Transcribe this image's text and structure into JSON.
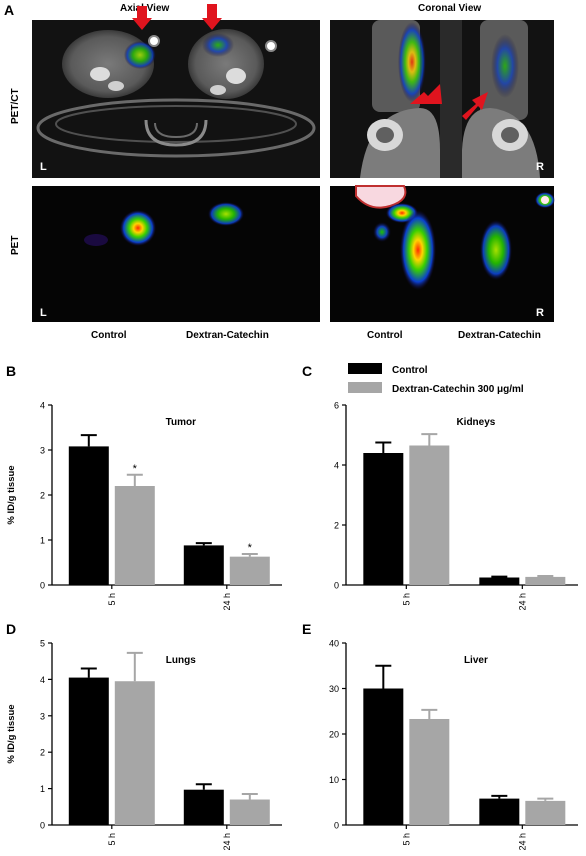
{
  "panel_labels": [
    "A",
    "B",
    "C",
    "D",
    "E"
  ],
  "imaging": {
    "axial_title": "Axial View",
    "coronal_title": "Coronal View",
    "row_labels": [
      "PET/CT",
      "PET"
    ],
    "left_marker": "L",
    "right_marker": "R",
    "group_labels": [
      "Control",
      "Dextran-Catechin",
      "Control",
      "Dextran-Catechin"
    ],
    "colors": {
      "arrow": "#e0141e",
      "ct_background": "#111111",
      "pet_background": "#050505"
    }
  },
  "legend": {
    "items": [
      {
        "label": "Control",
        "color": "#000000"
      },
      {
        "label": "Dextran-Catechin 300 μg/ml",
        "color": "#a6a6a6"
      }
    ]
  },
  "chart_data": [
    {
      "panel": "B",
      "type": "bar",
      "title": "Tumor",
      "xlabel": "",
      "ylabel": "% ID/g tissue",
      "categories": [
        "5 h",
        "24 h"
      ],
      "ylim": [
        0,
        4
      ],
      "yticks": [
        0,
        1,
        2,
        3,
        4
      ],
      "series": [
        {
          "values": [
            3.08,
            0.88
          ],
          "errors": [
            0.25,
            0.05
          ],
          "color": "#000000"
        },
        {
          "values": [
            2.2,
            0.63
          ],
          "errors": [
            0.25,
            0.06
          ],
          "color": "#a6a6a6",
          "significance": [
            "*",
            "*"
          ]
        }
      ]
    },
    {
      "panel": "C",
      "type": "bar",
      "title": "Kidneys",
      "xlabel": "",
      "ylabel": "",
      "categories": [
        "5 h",
        "24 h"
      ],
      "ylim": [
        0,
        6
      ],
      "yticks": [
        0,
        2,
        4,
        6
      ],
      "series": [
        {
          "values": [
            4.4,
            0.25
          ],
          "errors": [
            0.35,
            0.03
          ],
          "color": "#000000"
        },
        {
          "values": [
            4.65,
            0.27
          ],
          "errors": [
            0.38,
            0.03
          ],
          "color": "#a6a6a6"
        }
      ]
    },
    {
      "panel": "D",
      "type": "bar",
      "title": "Lungs",
      "xlabel": "",
      "ylabel": "% ID/g tissue",
      "categories": [
        "5 h",
        "24 h"
      ],
      "ylim": [
        0,
        5
      ],
      "yticks": [
        0,
        1,
        2,
        3,
        4,
        5
      ],
      "series": [
        {
          "values": [
            4.05,
            0.97
          ],
          "errors": [
            0.25,
            0.15
          ],
          "color": "#000000"
        },
        {
          "values": [
            3.95,
            0.7
          ],
          "errors": [
            0.78,
            0.15
          ],
          "color": "#a6a6a6"
        }
      ]
    },
    {
      "panel": "E",
      "type": "bar",
      "title": "Liver",
      "xlabel": "",
      "ylabel": "",
      "categories": [
        "5 h",
        "24 h"
      ],
      "ylim": [
        0,
        40
      ],
      "yticks": [
        0,
        10,
        20,
        30,
        40
      ],
      "series": [
        {
          "values": [
            30.0,
            5.8
          ],
          "errors": [
            5.0,
            0.6
          ],
          "color": "#000000"
        },
        {
          "values": [
            23.3,
            5.3
          ],
          "errors": [
            2.0,
            0.5
          ],
          "color": "#a6a6a6"
        }
      ]
    }
  ]
}
